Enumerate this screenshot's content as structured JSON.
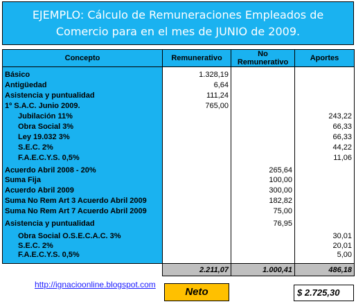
{
  "title": {
    "line1": "EJEMPLO: Cálculo de Remuneraciones Empleados de",
    "line2": "Comercio para en el mes de JUNIO de 2009."
  },
  "headers": {
    "concepto": "Concepto",
    "remunerativo": "Remunerativo",
    "no_remunerativo": "No Remunerativo",
    "aportes": "Aportes"
  },
  "rows": [
    {
      "concept": "Básico",
      "rem": "1.328,19",
      "norem": "",
      "aport": ""
    },
    {
      "concept": "Antigüedad",
      "rem": "6,64",
      "norem": "",
      "aport": ""
    },
    {
      "concept": "Asistencia y puntualidad",
      "rem": "111,24",
      "norem": "",
      "aport": ""
    },
    {
      "concept": "1º S.A.C. Junio 2009.",
      "rem": "765,00",
      "norem": "",
      "aport": ""
    },
    {
      "concept": "Jubilación 11%",
      "rem": "",
      "norem": "",
      "aport": "243,22"
    },
    {
      "concept": "Obra Social 3%",
      "rem": "",
      "norem": "",
      "aport": "66,33"
    },
    {
      "concept": "Ley 19.032 3%",
      "rem": "",
      "norem": "",
      "aport": "66,33"
    },
    {
      "concept": "S.E.C. 2%",
      "rem": "",
      "norem": "",
      "aport": "44,22"
    },
    {
      "concept": "F.A.E.C.Y.S. 0,5%",
      "rem": "",
      "norem": "",
      "aport": "11,06"
    },
    {
      "concept": "Acuerdo Abril 2008 - 20%",
      "rem": "",
      "norem": "265,64",
      "aport": ""
    },
    {
      "concept": "Suma Fija",
      "rem": "",
      "norem": "100,00",
      "aport": ""
    },
    {
      "concept": "Acuerdo Abril 2009",
      "rem": "",
      "norem": "300,00",
      "aport": ""
    },
    {
      "concept": "Suma No Rem Art 3 Acuerdo Abril 2009",
      "rem": "",
      "norem": "182,82",
      "aport": ""
    },
    {
      "concept": "Suma No Rem Art 7 Acuerdo Abril 2009",
      "rem": "",
      "norem": "75,00",
      "aport": ""
    },
    {
      "concept": "Asistencia y puntualidad",
      "rem": "",
      "norem": "76,95",
      "aport": ""
    },
    {
      "concept": "Obra Social O.S.E.C.A.C. 3%",
      "rem": "",
      "norem": "",
      "aport": "30,01"
    },
    {
      "concept": "S.E.C. 2%",
      "rem": "",
      "norem": "",
      "aport": "20,01"
    },
    {
      "concept": "F.A.E.C.Y.S. 0,5%",
      "rem": "",
      "norem": "",
      "aport": "5,00"
    }
  ],
  "totals": {
    "rem": "2.211,07",
    "norem": "1.000,41",
    "aport": "486,18"
  },
  "link_text": "http://ignacioonline.blogspot.com",
  "neto": {
    "label": "Neto",
    "value": "$  2.725,30"
  },
  "colors": {
    "header_blue": "#1ab2f0",
    "neto_fill": "#ffc000",
    "totals_grey": "#bfbfbf"
  }
}
